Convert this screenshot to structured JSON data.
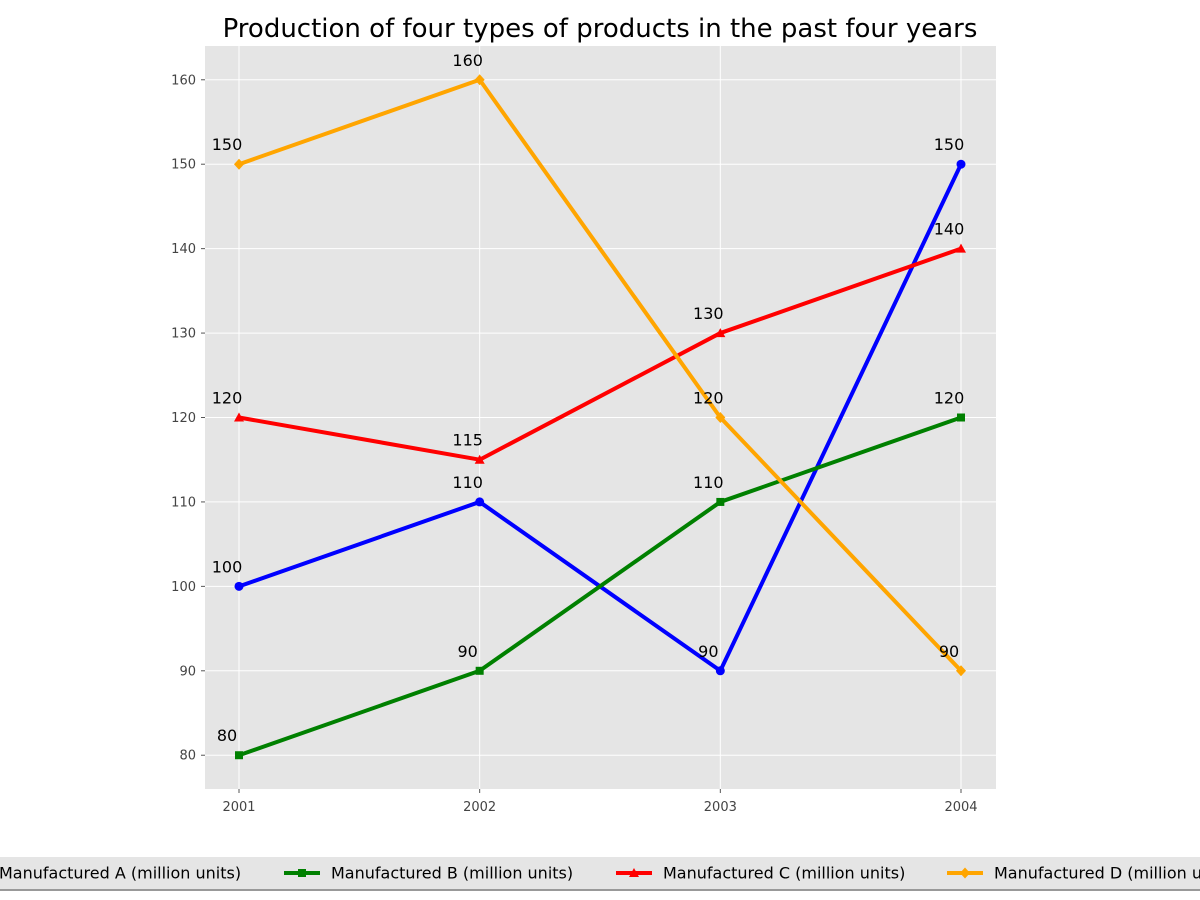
{
  "chart_data": {
    "type": "line",
    "title": "Production of four types of products in the past four years",
    "xlabel": "",
    "ylabel": "",
    "x": [
      "2001",
      "2002",
      "2003",
      "2004"
    ],
    "ylim": [
      76,
      164
    ],
    "yticks": [
      80,
      90,
      100,
      110,
      120,
      130,
      140,
      150,
      160
    ],
    "grid": true,
    "legend_position": "bottom",
    "series": [
      {
        "name": "Manufactured A (million units)",
        "values": [
          100,
          110,
          90,
          150
        ],
        "color": "#0000ff",
        "marker": "circle"
      },
      {
        "name": "Manufactured B (million units)",
        "values": [
          80,
          90,
          110,
          120
        ],
        "color": "#008000",
        "marker": "square"
      },
      {
        "name": "Manufactured C (million units)",
        "values": [
          120,
          115,
          130,
          140
        ],
        "color": "#ff0000",
        "marker": "triangle"
      },
      {
        "name": "Manufactured D (million units)",
        "values": [
          150,
          160,
          120,
          90
        ],
        "color": "#ffa500",
        "marker": "diamond"
      }
    ]
  }
}
